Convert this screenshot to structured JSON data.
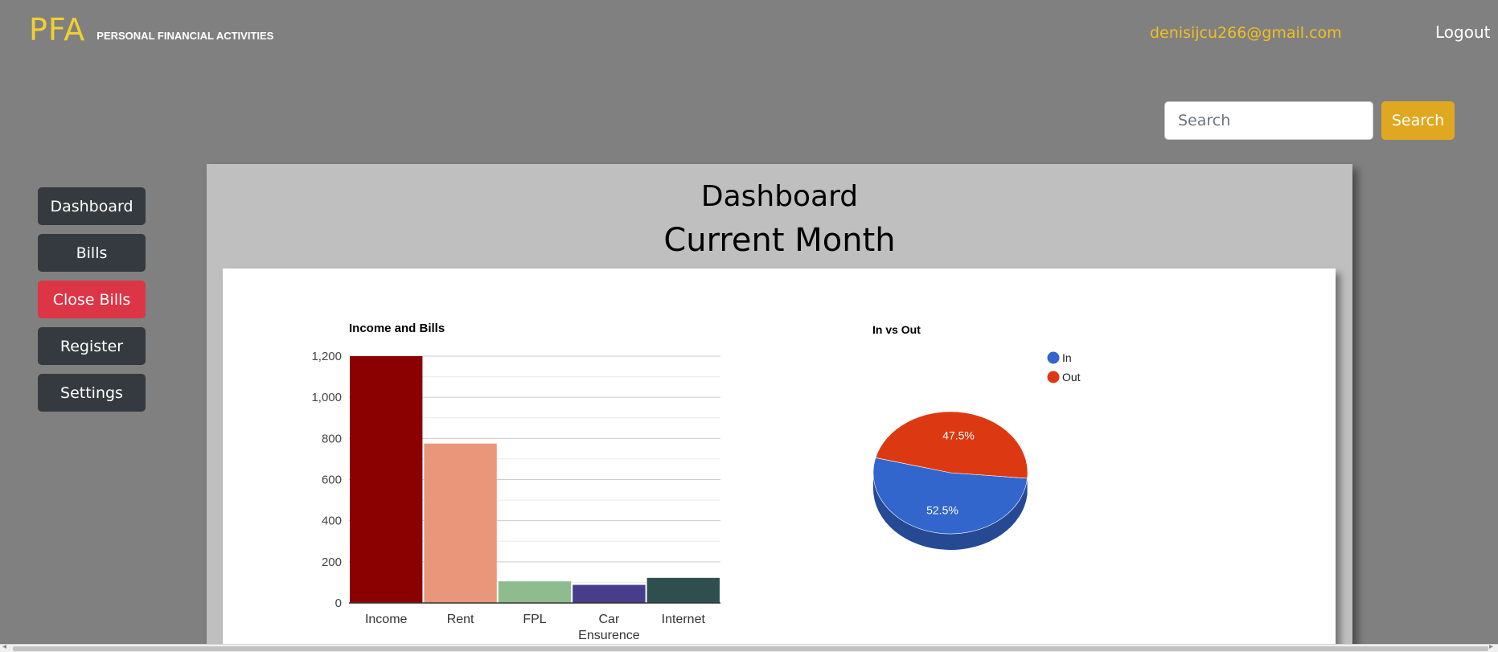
{
  "header": {
    "logo": "PFA",
    "subtitle": "PERSONAL FINANCIAL ACTIVITIES",
    "email": "denisijcu266@gmail.com",
    "logout_label": "Logout"
  },
  "search": {
    "placeholder": "Search",
    "value": "",
    "button_label": "Search"
  },
  "sidebar": {
    "items": [
      {
        "label": "Dashboard"
      },
      {
        "label": "Bills"
      },
      {
        "label": "Close Bills"
      },
      {
        "label": "Register"
      },
      {
        "label": "Settings"
      }
    ]
  },
  "main": {
    "title": "Dashboard",
    "subtitle": "Current Month"
  },
  "colors": {
    "accent_yellow": "#f0c020",
    "search_button": "#e0a820",
    "nav_button": "#343a40",
    "danger": "#dc3545",
    "background": "#808080"
  },
  "chart_data": [
    {
      "type": "bar",
      "title": "Income and Bills",
      "categories": [
        "Income",
        "Rent",
        "FPL",
        "Car Ensurence",
        "Internet"
      ],
      "values": [
        1200,
        775,
        105,
        88,
        122
      ],
      "colors": [
        "#8b0000",
        "#e9967a",
        "#8fbc8f",
        "#483d8b",
        "#2f4f4f"
      ],
      "ylim": [
        0,
        1200
      ],
      "yticks": [
        "0",
        "200",
        "400",
        "600",
        "800",
        "1,000",
        "1,200"
      ],
      "xlabel": "",
      "ylabel": "",
      "grid": true
    },
    {
      "type": "pie",
      "title": "In vs Out",
      "labels": [
        "In",
        "Out"
      ],
      "values": [
        52.5,
        47.5
      ],
      "data_labels": [
        "52.5%",
        "47.5%"
      ],
      "colors": [
        "#3366cc",
        "#dc3912"
      ],
      "legend_position": "top-right",
      "style": "3d"
    }
  ]
}
